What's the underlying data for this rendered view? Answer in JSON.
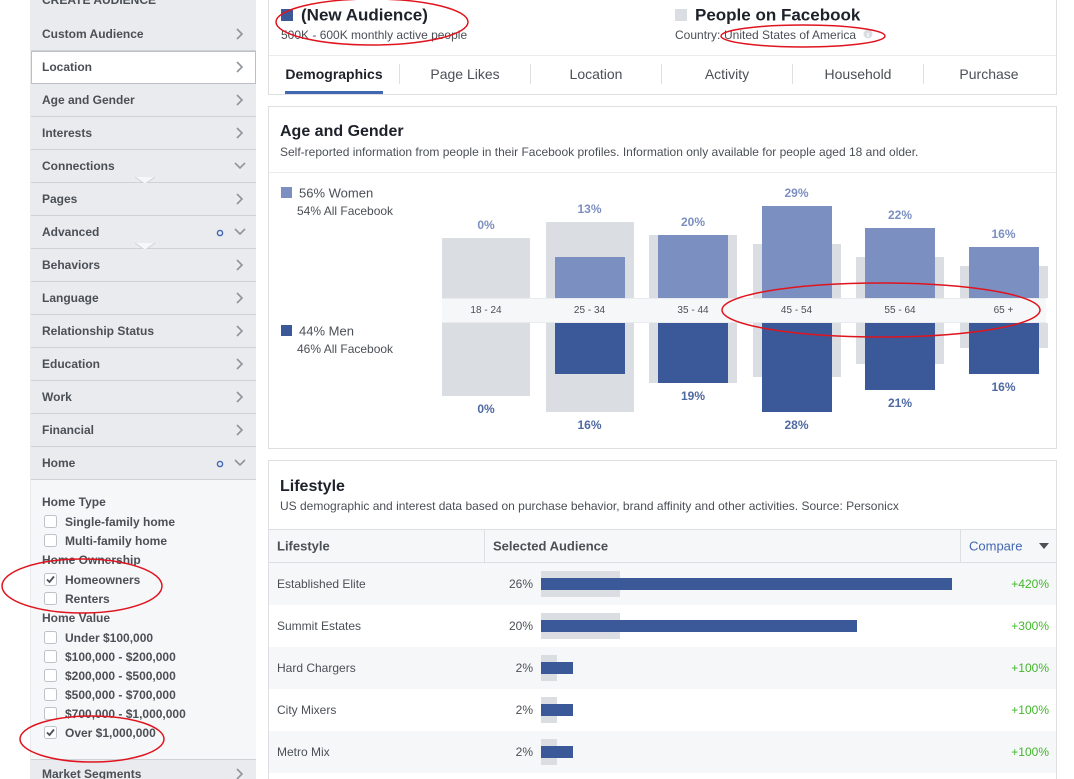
{
  "sidebar": {
    "heading": "CREATE AUDIENCE",
    "selected": 1,
    "items": [
      {
        "label": "Custom Audience",
        "open": false,
        "dot": false
      },
      {
        "label": "Location",
        "open": false,
        "dot": false
      },
      {
        "label": "Age and Gender",
        "open": false,
        "dot": false
      },
      {
        "label": "Interests",
        "open": false,
        "dot": false
      },
      {
        "label": "Connections",
        "open": true,
        "dot": false
      },
      {
        "label": "Pages",
        "open": false,
        "dot": false
      },
      {
        "label": "Advanced",
        "open": true,
        "dot": true
      },
      {
        "label": "Behaviors",
        "open": false,
        "dot": false
      },
      {
        "label": "Language",
        "open": false,
        "dot": false
      },
      {
        "label": "Relationship Status",
        "open": false,
        "dot": false
      },
      {
        "label": "Education",
        "open": false,
        "dot": false
      },
      {
        "label": "Work",
        "open": false,
        "dot": false
      },
      {
        "label": "Financial",
        "open": false,
        "dot": false
      },
      {
        "label": "Home",
        "open": true,
        "dot": true
      }
    ],
    "home": {
      "groups": [
        {
          "title": "Home Type",
          "options": [
            {
              "label": "Single-family home",
              "checked": false
            },
            {
              "label": "Multi-family home",
              "checked": false
            }
          ]
        },
        {
          "title": "Home Ownership",
          "options": [
            {
              "label": "Homeowners",
              "checked": true
            },
            {
              "label": "Renters",
              "checked": false
            }
          ]
        },
        {
          "title": "Home Value",
          "options": [
            {
              "label": "Under $100,000",
              "checked": false
            },
            {
              "label": "$100,000 - $200,000",
              "checked": false
            },
            {
              "label": "$200,000 - $500,000",
              "checked": false
            },
            {
              "label": "$500,000 - $700,000",
              "checked": false
            },
            {
              "label": "$700,000 - $1,000,000",
              "checked": false
            },
            {
              "label": "Over $1,000,000",
              "checked": true
            }
          ]
        }
      ]
    },
    "last_item": "Market Segments"
  },
  "header": {
    "audience": {
      "name": "(New Audience)",
      "size": "500K - 600K monthly active people"
    },
    "compare": {
      "name": "People on Facebook",
      "country_label": "Country:",
      "country": "United States of America"
    }
  },
  "tabs": {
    "active": 0,
    "items": [
      "Demographics",
      "Page Likes",
      "Location",
      "Activity",
      "Household",
      "Purchase"
    ]
  },
  "age_gender": {
    "title": "Age and Gender",
    "description": "Self-reported information from people in their Facebook profiles. Information only available for people aged 18 and older.",
    "women": {
      "label": "56% Women",
      "facebook": "54% All Facebook"
    },
    "men": {
      "label": "44% Men",
      "facebook": "46% All Facebook"
    },
    "groups": [
      {
        "label": "18 - 24",
        "women": 0,
        "women_label": "0%",
        "men": 0,
        "men_label": "0%",
        "women_fb": 19,
        "men_fb": 23
      },
      {
        "label": "25 - 34",
        "women": 13,
        "women_label": "13%",
        "men": 16,
        "men_label": "16%",
        "women_fb": 24,
        "men_fb": 28
      },
      {
        "label": "35 - 44",
        "women": 20,
        "women_label": "20%",
        "men": 19,
        "men_label": "19%",
        "women_fb": 20,
        "men_fb": 19
      },
      {
        "label": "45 - 54",
        "women": 29,
        "women_label": "29%",
        "men": 28,
        "men_label": "28%",
        "women_fb": 17,
        "men_fb": 17
      },
      {
        "label": "55 - 64",
        "women": 22,
        "women_label": "22%",
        "men": 21,
        "men_label": "21%",
        "women_fb": 13,
        "men_fb": 13
      },
      {
        "label": "65 +",
        "women": 16,
        "women_label": "16%",
        "men": 16,
        "men_label": "16%",
        "women_fb": 10,
        "men_fb": 8
      }
    ]
  },
  "lifestyle": {
    "title": "Lifestyle",
    "description": "US demographic and interest data based on purchase behavior, brand affinity and other activities. Source: Personicx",
    "columns": [
      "Lifestyle",
      "Selected Audience",
      "Compare"
    ],
    "rows": [
      {
        "name": "Established Elite",
        "value": 26,
        "value_label": "26%",
        "facebook": 5,
        "compare": "+420%"
      },
      {
        "name": "Summit Estates",
        "value": 20,
        "value_label": "20%",
        "facebook": 5,
        "compare": "+300%"
      },
      {
        "name": "Hard Chargers",
        "value": 2,
        "value_label": "2%",
        "facebook": 1,
        "compare": "+100%"
      },
      {
        "name": "City Mixers",
        "value": 2,
        "value_label": "2%",
        "facebook": 1,
        "compare": "+100%"
      },
      {
        "name": "Metro Mix",
        "value": 2,
        "value_label": "2%",
        "facebook": 1,
        "compare": "+100%"
      }
    ]
  }
}
